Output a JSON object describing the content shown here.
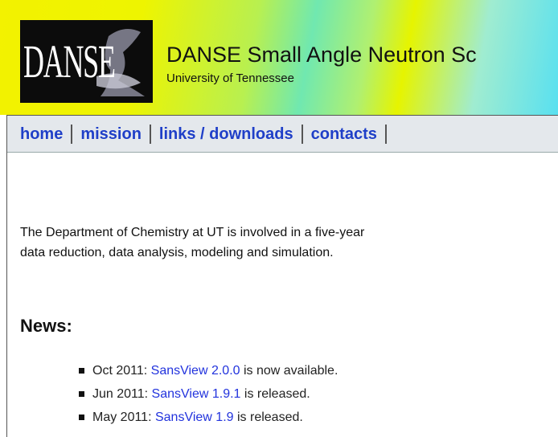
{
  "header": {
    "logo_text": "DANSE",
    "title": "DANSE Small Angle Neutron Sc",
    "subtitle": "University of Tennessee"
  },
  "nav": [
    "home",
    "mission",
    "links / downloads",
    "contacts"
  ],
  "intro": [
    "The Department of Chemistry at UT is involved in a five-year",
    "data reduction, data analysis, modeling and simulation."
  ],
  "news": {
    "heading": "News:",
    "items": [
      {
        "date": "Oct 2011:",
        "link": "SansView 2.0.0",
        "rest": "is now available."
      },
      {
        "date": "Jun 2011:",
        "link": "SansView 1.9.1",
        "rest": "is released."
      },
      {
        "date": "May 2011:",
        "link": "SansView 1.9",
        "rest": "is released."
      }
    ]
  }
}
